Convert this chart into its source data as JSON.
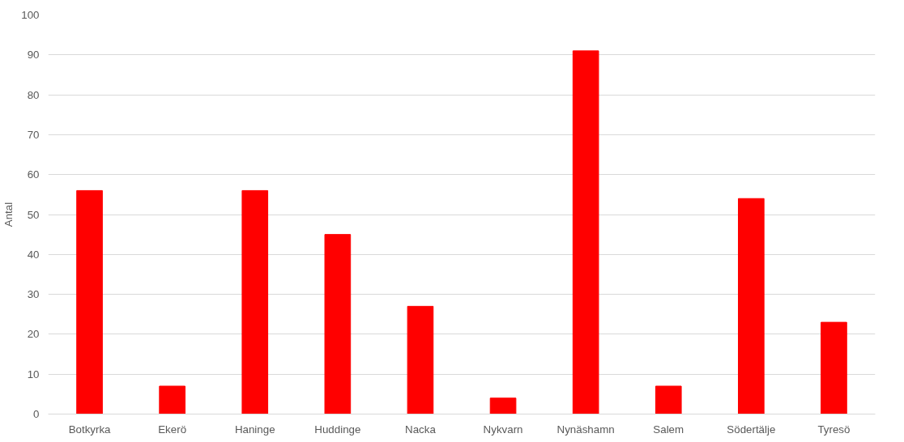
{
  "chart_data": {
    "type": "bar",
    "ylabel": "Antal",
    "categories": [
      "Botkyrka",
      "Ekerö",
      "Haninge",
      "Huddinge",
      "Nacka",
      "Nykvarn",
      "Nynäshamn",
      "Salem",
      "Södertälje",
      "Tyresö"
    ],
    "values": [
      56,
      7,
      56,
      45,
      27,
      4,
      91,
      7,
      54,
      23
    ],
    "color": "#ff0000",
    "ylim": [
      0,
      100
    ],
    "yticks": [
      0,
      10,
      20,
      30,
      40,
      50,
      60,
      70,
      80,
      90,
      100
    ],
    "grid": "y"
  }
}
